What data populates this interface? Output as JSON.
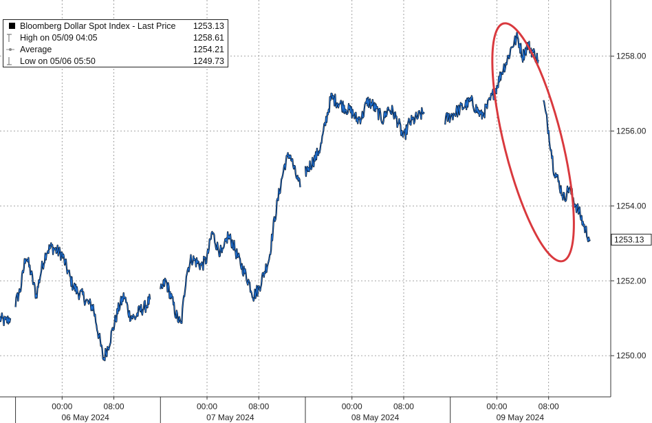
{
  "chart_data": {
    "type": "line",
    "title": "",
    "legend": {
      "placement": "top-left",
      "rows": [
        {
          "label": "Bloomberg Dollar Spot Index - Last Price",
          "value": "1253.13",
          "marker": "square"
        },
        {
          "label": "High on 05/09 04:05",
          "value": "1258.61",
          "marker": "high"
        },
        {
          "label": "Average",
          "value": "1254.21",
          "marker": "average"
        },
        {
          "label": "Low on 05/06 05:50",
          "value": "1249.73",
          "marker": "low"
        }
      ]
    },
    "y_axis": {
      "position": "right",
      "ticks": [
        "1258.00",
        "1256.00",
        "1254.00",
        "1252.00",
        "1250.00"
      ],
      "tick_values": [
        1258,
        1256,
        1254,
        1252,
        1250
      ],
      "ylim": [
        1248.9,
        1259.5
      ],
      "last_price_label": "1253.13"
    },
    "x_axis": {
      "xlim": [
        0,
        118
      ],
      "time_ticks": [
        {
          "x": 12,
          "label": "00:00"
        },
        {
          "x": 22,
          "label": "08:00"
        },
        {
          "x": 40,
          "label": "00:00"
        },
        {
          "x": 50,
          "label": "08:00"
        },
        {
          "x": 68,
          "label": "00:00"
        },
        {
          "x": 78,
          "label": "08:00"
        },
        {
          "x": 96,
          "label": "00:00"
        },
        {
          "x": 106,
          "label": "08:00"
        }
      ],
      "day_labels": [
        {
          "x": 16.5,
          "label": "06 May 2024"
        },
        {
          "x": 44.5,
          "label": "07 May 2024"
        },
        {
          "x": 72.5,
          "label": "08 May 2024"
        },
        {
          "x": 100.5,
          "label": "09 May 2024"
        }
      ],
      "day_separators": [
        3,
        31,
        59,
        87
      ]
    },
    "grid": true,
    "series": [
      {
        "name": "Bloomberg Dollar Spot Index",
        "color": "#000000",
        "highlight_color": "#1f6fd1",
        "segments": [
          [
            [
              0,
              1251.0
            ],
            [
              1,
              1250.9
            ],
            [
              2,
              1251.0
            ]
          ],
          [
            [
              3,
              1251.4
            ],
            [
              4,
              1251.8
            ],
            [
              5,
              1252.7
            ],
            [
              6,
              1252.2
            ],
            [
              7,
              1251.6
            ],
            [
              8,
              1252.3
            ],
            [
              9,
              1252.8
            ],
            [
              10,
              1252.9
            ],
            [
              11,
              1252.8
            ],
            [
              12,
              1252.7
            ],
            [
              13,
              1252.3
            ],
            [
              14,
              1251.9
            ],
            [
              15,
              1251.7
            ],
            [
              16,
              1251.6
            ],
            [
              17,
              1251.4
            ],
            [
              18,
              1251.3
            ],
            [
              19,
              1250.6
            ],
            [
              20,
              1249.9
            ],
            [
              21,
              1250.3
            ],
            [
              22,
              1250.8
            ],
            [
              23,
              1251.3
            ],
            [
              24,
              1251.6
            ],
            [
              25,
              1251.1
            ],
            [
              26,
              1251.0
            ],
            [
              27,
              1251.2
            ],
            [
              28,
              1251.3
            ],
            [
              29,
              1251.5
            ]
          ],
          [
            [
              31,
              1251.7
            ],
            [
              32,
              1252.0
            ],
            [
              33,
              1251.6
            ],
            [
              34,
              1251.1
            ],
            [
              35,
              1250.8
            ],
            [
              36,
              1252.2
            ],
            [
              37,
              1252.6
            ],
            [
              38,
              1252.5
            ],
            [
              39,
              1252.4
            ],
            [
              40,
              1252.6
            ],
            [
              41,
              1253.3
            ],
            [
              42,
              1252.9
            ],
            [
              43,
              1252.7
            ],
            [
              44,
              1253.2
            ],
            [
              45,
              1253.0
            ],
            [
              46,
              1252.6
            ],
            [
              47,
              1252.3
            ],
            [
              48,
              1252.0
            ],
            [
              49,
              1251.6
            ],
            [
              50,
              1251.8
            ],
            [
              51,
              1252.2
            ],
            [
              52,
              1252.6
            ],
            [
              53,
              1253.6
            ],
            [
              54,
              1254.4
            ],
            [
              55,
              1255.1
            ],
            [
              56,
              1255.4
            ],
            [
              57,
              1254.9
            ],
            [
              58,
              1254.5
            ]
          ],
          [
            [
              59,
              1254.9
            ],
            [
              60,
              1255.1
            ],
            [
              61,
              1255.3
            ],
            [
              62,
              1255.6
            ],
            [
              63,
              1256.3
            ],
            [
              64,
              1256.9
            ],
            [
              65,
              1256.8
            ],
            [
              66,
              1256.7
            ],
            [
              67,
              1256.6
            ],
            [
              68,
              1256.5
            ],
            [
              69,
              1256.3
            ],
            [
              70,
              1256.4
            ],
            [
              71,
              1256.8
            ],
            [
              72,
              1256.7
            ],
            [
              73,
              1256.5
            ],
            [
              74,
              1256.3
            ],
            [
              75,
              1256.6
            ],
            [
              76,
              1256.5
            ],
            [
              77,
              1256.2
            ],
            [
              78,
              1255.8
            ],
            [
              79,
              1256.2
            ],
            [
              80,
              1256.3
            ],
            [
              81,
              1256.4
            ],
            [
              82,
              1256.5
            ]
          ],
          [
            [
              86,
              1256.3
            ],
            [
              87,
              1256.4
            ],
            [
              88,
              1256.5
            ],
            [
              89,
              1256.6
            ],
            [
              90,
              1256.7
            ],
            [
              91,
              1256.8
            ],
            [
              92,
              1256.6
            ],
            [
              93,
              1256.4
            ],
            [
              94,
              1256.6
            ],
            [
              95,
              1256.9
            ],
            [
              96,
              1257.2
            ],
            [
              97,
              1257.6
            ],
            [
              98,
              1257.9
            ],
            [
              99,
              1258.3
            ],
            [
              100,
              1258.5
            ],
            [
              101,
              1258.0
            ],
            [
              102,
              1258.3
            ],
            [
              103,
              1258.1
            ],
            [
              104,
              1257.9
            ]
          ],
          [
            [
              105,
              1256.8
            ],
            [
              106,
              1256.0
            ],
            [
              107,
              1255.0
            ],
            [
              108,
              1254.6
            ],
            [
              109,
              1254.2
            ],
            [
              110,
              1254.5
            ],
            [
              111,
              1254.1
            ],
            [
              112,
              1253.8
            ],
            [
              113,
              1253.4
            ],
            [
              114,
              1253.1
            ]
          ]
        ]
      }
    ],
    "annotation": {
      "shape": "ellipse",
      "color": "#d9393e",
      "note": "circled sell-off on 09 May"
    }
  }
}
